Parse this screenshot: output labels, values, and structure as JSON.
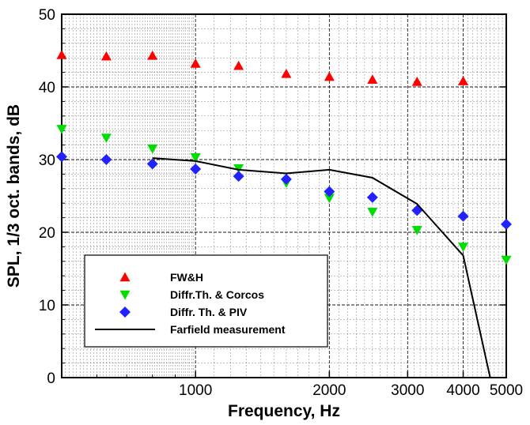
{
  "chart_data": {
    "type": "scatter",
    "xlabel": "Frequency, Hz",
    "ylabel": "SPL, 1/3 oct. bands, dB",
    "xscale": "log",
    "xlim": [
      500,
      5000
    ],
    "ylim": [
      0,
      50
    ],
    "x_tick_labels": [
      {
        "value": 1000,
        "label": "1000"
      },
      {
        "value": 2000,
        "label": "2000"
      },
      {
        "value": 3000,
        "label": "3000"
      },
      {
        "value": 4000,
        "label": "4000"
      },
      {
        "value": 5000,
        "label": "5000"
      }
    ],
    "y_tick_labels": [
      {
        "value": 0,
        "label": "0"
      },
      {
        "value": 10,
        "label": "10"
      },
      {
        "value": 20,
        "label": "20"
      },
      {
        "value": 30,
        "label": "30"
      },
      {
        "value": 40,
        "label": "40"
      },
      {
        "value": 50,
        "label": "50"
      }
    ],
    "grid": true,
    "legend_position": "bottom-left",
    "series": [
      {
        "name": "FW&H",
        "marker": "triangle-up",
        "color": "#ff0000",
        "x": [
          500,
          630,
          800,
          1000,
          1250,
          1600,
          2000,
          2500,
          3150,
          4000
        ],
        "y": [
          44.4,
          44.2,
          44.3,
          43.2,
          42.9,
          41.8,
          41.4,
          41.0,
          40.7,
          40.8
        ]
      },
      {
        "name": "Diffr.Th. & Corcos",
        "marker": "triangle-down",
        "color": "#00dd00",
        "x": [
          500,
          630,
          800,
          1000,
          1250,
          1600,
          2000,
          2500,
          3150,
          4000,
          5000
        ],
        "y": [
          34.2,
          33.0,
          31.5,
          30.3,
          28.8,
          26.8,
          24.7,
          22.8,
          20.3,
          18.0,
          16.2
        ]
      },
      {
        "name": "Diffr. Th. & PIV",
        "marker": "diamond",
        "color": "#2222ff",
        "x": [
          500,
          630,
          800,
          1000,
          1250,
          1600,
          2000,
          2500,
          3150,
          4000,
          5000
        ],
        "y": [
          30.4,
          30.0,
          29.4,
          28.7,
          27.7,
          27.3,
          25.6,
          24.8,
          23.0,
          22.2,
          21.1
        ]
      },
      {
        "name": "Farfield measurement",
        "marker": "line",
        "color": "#000000",
        "x": [
          800,
          1000,
          1250,
          1600,
          2000,
          2500,
          3150,
          4000,
          4600
        ],
        "y": [
          30.2,
          29.8,
          28.6,
          28.1,
          28.6,
          27.5,
          23.9,
          16.8,
          0
        ]
      }
    ]
  }
}
